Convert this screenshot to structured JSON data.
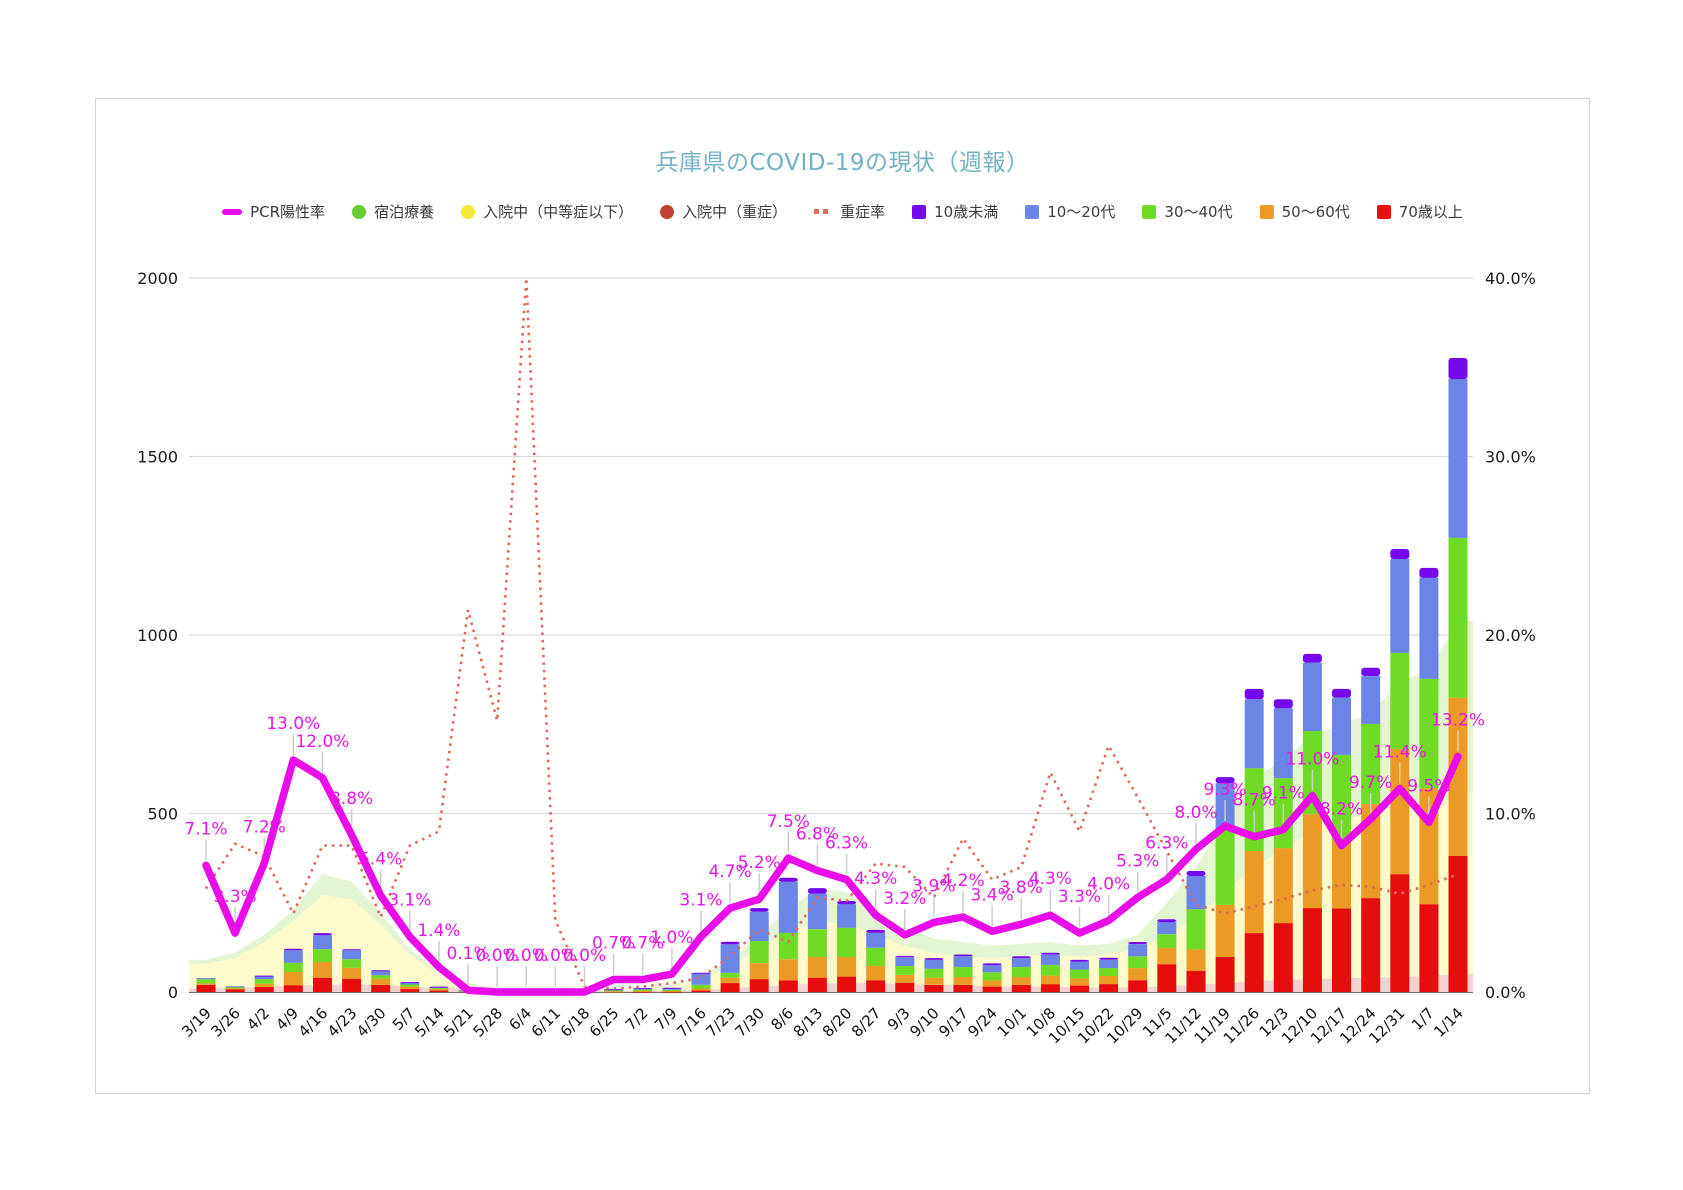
{
  "title": "兵庫県のCOVID-19の現状（週報）",
  "colors": {
    "title": "#73b1c4",
    "grid": "#d9d9d9",
    "axis_base": "#6f6f6f",
    "leader": "#cccccc",
    "pcr_line": "#e80ce8",
    "severe_line": "#dd6a5b",
    "area_hotel": "#e4f5d2",
    "area_hosp": "#fdfacc",
    "area_severe": "#f1d4d1",
    "bar_u10": "#7508ec",
    "bar_1020": "#6a85e5",
    "bar_3040": "#70db24",
    "bar_5060": "#ec9a26",
    "bar_70": "#e60d0d",
    "legend_hotel": "#64ce34",
    "legend_hosp": "#f6e838",
    "legend_severe_hosp": "#c24334"
  },
  "legend": [
    {
      "label": "PCR陽性率",
      "marker": "line",
      "color": "#e80ce8"
    },
    {
      "label": "宿泊療養",
      "marker": "circle",
      "color": "#64ce34"
    },
    {
      "label": "入院中（中等症以下）",
      "marker": "circle",
      "color": "#f6e838"
    },
    {
      "label": "入院中（重症）",
      "marker": "circle",
      "color": "#c24334"
    },
    {
      "label": "重症率",
      "marker": "dotted",
      "color": "#dd6a5b"
    },
    {
      "label": "10歳未満",
      "marker": "square",
      "color": "#7508ec"
    },
    {
      "label": "10〜20代",
      "marker": "square",
      "color": "#6a85e5"
    },
    {
      "label": "30〜40代",
      "marker": "square",
      "color": "#70db24"
    },
    {
      "label": "50〜60代",
      "marker": "square",
      "color": "#ec9a26"
    },
    {
      "label": "70歳以上",
      "marker": "square",
      "color": "#e60d0d"
    }
  ],
  "chart_data": {
    "type": "combo (stacked bar + area + line)",
    "grid": true,
    "legend_position": "top",
    "left_axis": {
      "max": 2000,
      "ticks": [
        0,
        500,
        1000,
        1500,
        2000
      ]
    },
    "right_axis": {
      "max": 40,
      "tick_values": [
        0,
        10,
        20,
        30,
        40
      ],
      "tick_labels": [
        "0.0%",
        "10.0%",
        "20.0%",
        "30.0%",
        "40.0%"
      ]
    },
    "categories": [
      "3/19",
      "3/26",
      "4/2",
      "4/9",
      "4/16",
      "4/23",
      "4/30",
      "5/7",
      "5/14",
      "5/21",
      "5/28",
      "6/4",
      "6/11",
      "6/18",
      "6/25",
      "7/2",
      "7/9",
      "7/16",
      "7/23",
      "7/30",
      "8/6",
      "8/13",
      "8/20",
      "8/27",
      "9/3",
      "9/10",
      "9/17",
      "9/24",
      "10/1",
      "10/8",
      "10/15",
      "10/22",
      "10/29",
      "11/5",
      "11/12",
      "11/19",
      "11/26",
      "12/3",
      "12/10",
      "12/17",
      "12/24",
      "12/31",
      "1/7",
      "1/14"
    ],
    "bar_stack_order": [
      "70歳以上",
      "50〜60代",
      "30〜40代",
      "10〜20代",
      "10歳未満"
    ],
    "series": [
      {
        "name": "宿泊療養",
        "type": "area",
        "axis": "left",
        "color": "#e4f5d2",
        "values": [
          90,
          110,
          160,
          230,
          330,
          310,
          220,
          120,
          60,
          25,
          10,
          5,
          3,
          3,
          5,
          10,
          20,
          45,
          90,
          160,
          230,
          290,
          280,
          230,
          180,
          150,
          140,
          130,
          135,
          140,
          130,
          135,
          160,
          250,
          350,
          480,
          600,
          650,
          720,
          750,
          780,
          870,
          900,
          1040
        ]
      },
      {
        "name": "入院中（中等症以下）",
        "type": "area",
        "axis": "left",
        "color": "#fdfacc",
        "values": [
          80,
          95,
          140,
          200,
          272,
          260,
          190,
          105,
          50,
          20,
          8,
          4,
          3,
          3,
          4,
          8,
          15,
          35,
          70,
          120,
          170,
          200,
          190,
          160,
          130,
          110,
          100,
          95,
          100,
          105,
          100,
          105,
          120,
          160,
          210,
          280,
          350,
          400,
          450,
          480,
          500,
          520,
          520,
          560
        ]
      },
      {
        "name": "入院中（重症）",
        "type": "area",
        "axis": "left",
        "color": "#f1d4d1",
        "values": [
          10,
          12,
          15,
          18,
          20,
          22,
          20,
          15,
          12,
          10,
          8,
          6,
          4,
          3,
          3,
          3,
          4,
          6,
          10,
          15,
          20,
          24,
          25,
          24,
          22,
          20,
          18,
          16,
          15,
          14,
          13,
          13,
          14,
          16,
          20,
          25,
          30,
          34,
          36,
          38,
          40,
          42,
          45,
          50
        ]
      },
      {
        "name": "70歳以上",
        "type": "bar",
        "axis": "left",
        "color": "#e60d0d",
        "values": [
          20,
          8,
          14,
          19,
          40,
          37,
          20,
          8,
          4,
          2,
          1,
          1,
          0,
          1,
          1,
          1,
          1,
          4,
          25,
          36,
          33,
          40,
          43,
          33,
          26,
          20,
          20,
          15,
          20,
          22,
          18,
          22,
          33,
          78,
          59,
          98,
          165,
          193,
          235,
          234,
          263,
          330,
          246,
          381
        ]
      },
      {
        "name": "50〜60代",
        "type": "bar",
        "axis": "left",
        "color": "#ec9a26",
        "values": [
          4,
          2,
          9,
          37,
          44,
          31,
          17,
          7,
          4,
          1,
          1,
          1,
          1,
          1,
          1,
          2,
          2,
          6,
          15,
          45,
          59,
          58,
          55,
          40,
          22,
          20,
          22,
          18,
          22,
          24,
          20,
          23,
          34,
          45,
          61,
          146,
          230,
          210,
          263,
          190,
          264,
          351,
          325,
          443
        ]
      },
      {
        "name": "30〜40代",
        "type": "bar",
        "axis": "left",
        "color": "#70db24",
        "values": [
          12,
          4,
          13,
          26,
          36,
          24,
          10,
          6,
          3,
          1,
          1,
          1,
          1,
          2,
          3,
          4,
          3,
          10,
          14,
          62,
          74,
          78,
          82,
          51,
          25,
          25,
          28,
          22,
          28,
          30,
          25,
          22,
          33,
          39,
          112,
          213,
          232,
          196,
          233,
          240,
          224,
          269,
          306,
          448
        ]
      },
      {
        "name": "10〜20代",
        "type": "bar",
        "axis": "left",
        "color": "#6a85e5",
        "values": [
          3,
          2,
          9,
          35,
          39,
          25,
          12,
          6,
          3,
          1,
          1,
          0,
          1,
          1,
          2,
          3,
          4,
          32,
          80,
          82,
          143,
          99,
          66,
          42,
          24,
          25,
          30,
          20,
          25,
          28,
          22,
          23,
          34,
          34,
          93,
          128,
          193,
          196,
          191,
          160,
          134,
          263,
          283,
          445
        ]
      },
      {
        "name": "10歳未満",
        "type": "bar",
        "axis": "left",
        "color": "#7508ec",
        "values": [
          0,
          0,
          1,
          4,
          6,
          3,
          2,
          1,
          1,
          0,
          0,
          0,
          0,
          0,
          1,
          1,
          2,
          2,
          7,
          10,
          11,
          16,
          9,
          8,
          4,
          5,
          5,
          5,
          5,
          6,
          5,
          6,
          6,
          8,
          14,
          17,
          29,
          25,
          25,
          25,
          23,
          28,
          28,
          59
        ]
      },
      {
        "name": "重症率",
        "type": "line-dotted",
        "axis": "right",
        "color": "#dd6a5b",
        "values": [
          5.8,
          8.3,
          7.6,
          4.4,
          8.2,
          8.2,
          4.2,
          8.2,
          9.0,
          21.4,
          15.2,
          40.0,
          4.0,
          0.3,
          0.2,
          0.3,
          0.5,
          0.8,
          2.0,
          3.5,
          2.8,
          5.3,
          5.1,
          7.2,
          7.0,
          5.3,
          8.6,
          6.3,
          7.0,
          12.3,
          9.0,
          13.8,
          10.9,
          7.9,
          4.9,
          4.4,
          4.8,
          5.2,
          5.7,
          6.0,
          5.9,
          5.5,
          6.0,
          6.6
        ]
      },
      {
        "name": "PCR陽性率",
        "type": "line",
        "axis": "right",
        "color": "#e80ce8",
        "data_labels": true,
        "values": [
          7.1,
          3.3,
          7.2,
          13.0,
          12.0,
          8.8,
          5.4,
          3.1,
          1.4,
          0.1,
          0.0,
          0.0,
          0.0,
          0.0,
          0.7,
          0.7,
          1.0,
          3.1,
          4.7,
          5.2,
          7.5,
          6.8,
          6.3,
          4.3,
          3.2,
          3.9,
          4.2,
          3.4,
          3.8,
          4.3,
          3.3,
          4.0,
          5.3,
          6.3,
          8.0,
          9.3,
          8.7,
          9.1,
          11.0,
          8.2,
          9.7,
          11.4,
          9.5,
          13.2
        ]
      }
    ]
  }
}
